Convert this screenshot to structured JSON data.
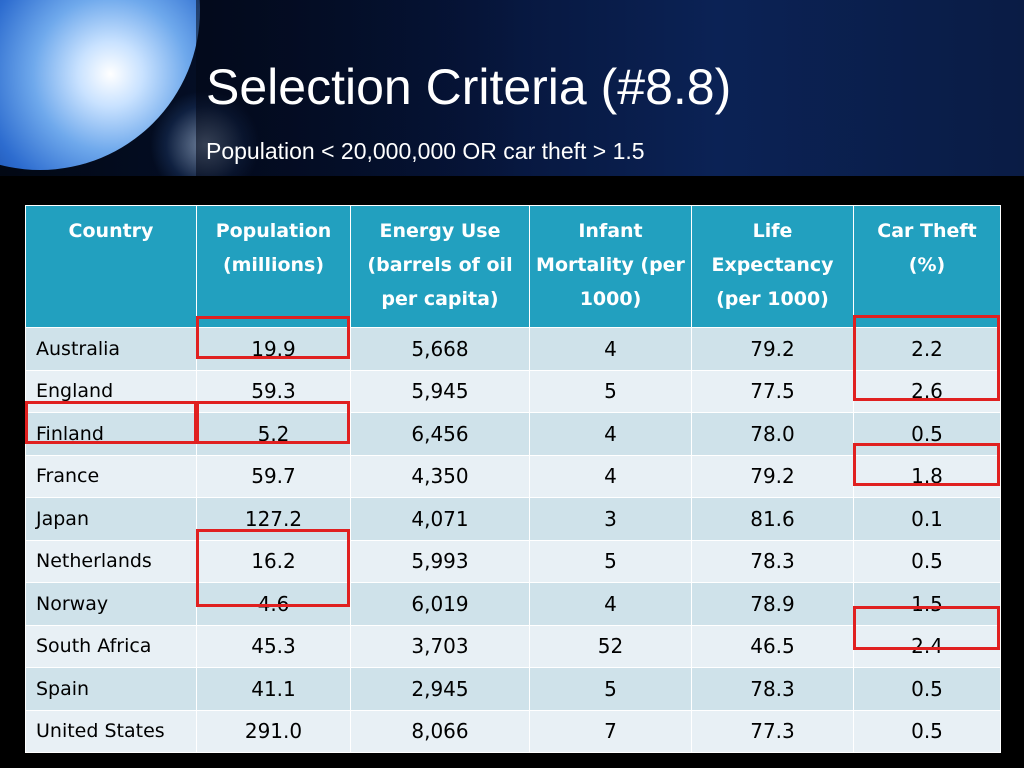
{
  "slide": {
    "title": "Selection Criteria (#8.8)",
    "subtitle": "Population < 20,000,000 OR car theft > 1.5"
  },
  "table": {
    "headers": [
      "Country",
      "Population (millions)",
      "Energy Use (barrels of oil per capita)",
      "Infant Mortality (per 1000)",
      "Life Expectancy (per 1000)",
      "Car Theft (%)"
    ],
    "rows": [
      [
        "Australia",
        "19.9",
        "5,668",
        "4",
        "79.2",
        "2.2"
      ],
      [
        "England",
        "59.3",
        "5,945",
        "5",
        "77.5",
        "2.6"
      ],
      [
        "Finland",
        "5.2",
        "6,456",
        "4",
        "78.0",
        "0.5"
      ],
      [
        "France",
        "59.7",
        "4,350",
        "4",
        "79.2",
        "1.8"
      ],
      [
        "Japan",
        "127.2",
        "4,071",
        "3",
        "81.6",
        "0.1"
      ],
      [
        "Netherlands",
        "16.2",
        "5,993",
        "5",
        "78.3",
        "0.5"
      ],
      [
        "Norway",
        "4.6",
        "6,019",
        "4",
        "78.9",
        "1.5"
      ],
      [
        "South Africa",
        "45.3",
        "3,703",
        "52",
        "46.5",
        "2.4"
      ],
      [
        "Spain",
        "41.1",
        "2,945",
        "5",
        "78.3",
        "0.5"
      ],
      [
        "United States",
        "291.0",
        "8,066",
        "7",
        "77.3",
        "0.5"
      ]
    ]
  },
  "colors": {
    "header_bg": "#22a0bf",
    "row_odd": "#cfe2ea",
    "row_even": "#e8f0f5",
    "highlight": "#e02020"
  }
}
